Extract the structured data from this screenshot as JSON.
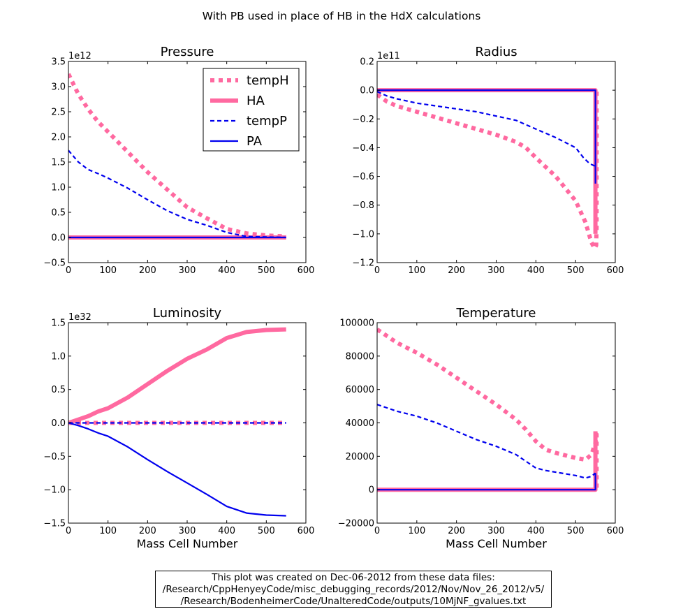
{
  "figure": {
    "suptitle": "With PB used in place of HB in the HdX calculations",
    "caption_lines": [
      "This plot was created on Dec-06-2012 from these data files:",
      "/Research/CppHenyeyCode/misc_debugging_records/2012/Nov/Nov_26_2012/v5/",
      "/Research/BodenheimerCode/UnalteredCode/outputs/10MjNF_gvalues.txt"
    ]
  },
  "colors": {
    "hot_pink": "#ff69a0",
    "blue": "#0000ee",
    "axis": "#000000"
  },
  "chart_data": [
    {
      "type": "line",
      "title": "Pressure",
      "xlabel": "",
      "ylabel": "",
      "offset_text": "1e12",
      "xlim": [
        0,
        600
      ],
      "ylim": [
        -0.5,
        3.5
      ],
      "xticks": [
        "0",
        "100",
        "200",
        "300",
        "400",
        "500",
        "600"
      ],
      "yticks": [
        "−0.5",
        "0.0",
        "0.5",
        "1.0",
        "1.5",
        "2.0",
        "2.5",
        "3.0",
        "3.5"
      ],
      "ytick_values": [
        -0.5,
        0,
        0.5,
        1,
        1.5,
        2,
        2.5,
        3,
        3.5
      ],
      "legend": {
        "placement": "upper-right",
        "entries": [
          "tempH",
          "HA",
          "tempP",
          "PA"
        ]
      },
      "series": [
        {
          "name": "tempH",
          "style": "dotted-thick",
          "color": "#ff69a0",
          "x": [
            0,
            25,
            50,
            75,
            100,
            150,
            200,
            250,
            300,
            350,
            400,
            450,
            500,
            550
          ],
          "y": [
            3.25,
            2.85,
            2.55,
            2.3,
            2.1,
            1.7,
            1.3,
            0.95,
            0.6,
            0.38,
            0.17,
            0.08,
            0.04,
            0.02
          ]
        },
        {
          "name": "HA",
          "style": "solid-thick",
          "color": "#ff69a0",
          "x": [
            0,
            550
          ],
          "y": [
            0.0,
            0.0
          ]
        },
        {
          "name": "tempP",
          "style": "dashed",
          "color": "#0000ee",
          "x": [
            0,
            25,
            50,
            75,
            100,
            150,
            200,
            250,
            300,
            350,
            400,
            450,
            500,
            550
          ],
          "y": [
            1.73,
            1.5,
            1.35,
            1.27,
            1.18,
            0.98,
            0.75,
            0.53,
            0.36,
            0.24,
            0.1,
            0.02,
            0.01,
            0.0
          ]
        },
        {
          "name": "PA",
          "style": "solid",
          "color": "#0000ee",
          "x": [
            0,
            550
          ],
          "y": [
            0.0,
            0.0
          ]
        }
      ]
    },
    {
      "type": "line",
      "title": "Radius",
      "xlabel": "",
      "ylabel": "",
      "offset_text": "1e11",
      "xlim": [
        0,
        600
      ],
      "ylim": [
        -1.2,
        0.2
      ],
      "xticks": [
        "0",
        "100",
        "200",
        "300",
        "400",
        "500",
        "600"
      ],
      "yticks": [
        "−1.2",
        "−1.0",
        "−0.8",
        "−0.6",
        "−0.4",
        "−0.2",
        "0.0",
        "0.2"
      ],
      "ytick_values": [
        -1.2,
        -1.0,
        -0.8,
        -0.6,
        -0.4,
        -0.2,
        0.0,
        0.2
      ],
      "series": [
        {
          "name": "tempH",
          "style": "dotted-thick",
          "color": "#ff69a0",
          "x": [
            0,
            25,
            50,
            100,
            150,
            200,
            250,
            300,
            350,
            375,
            400,
            450,
            500,
            525,
            540,
            548,
            552,
            553,
            553
          ],
          "y": [
            -0.03,
            -0.08,
            -0.11,
            -0.15,
            -0.19,
            -0.23,
            -0.27,
            -0.31,
            -0.36,
            -0.4,
            -0.47,
            -0.6,
            -0.77,
            -0.92,
            -1.06,
            -1.1,
            -1.08,
            -0.95,
            0.0
          ]
        },
        {
          "name": "HA",
          "style": "solid-thick",
          "color": "#ff69a0",
          "x": [
            0,
            550,
            550
          ],
          "y": [
            0.0,
            0.0,
            -1.0
          ]
        },
        {
          "name": "tempP",
          "style": "dashed",
          "color": "#0000ee",
          "x": [
            0,
            25,
            50,
            100,
            150,
            200,
            250,
            300,
            350,
            375,
            400,
            450,
            500,
            520,
            535,
            550
          ],
          "y": [
            -0.01,
            -0.04,
            -0.06,
            -0.09,
            -0.11,
            -0.13,
            -0.15,
            -0.18,
            -0.21,
            -0.24,
            -0.27,
            -0.33,
            -0.4,
            -0.47,
            -0.51,
            -0.53
          ]
        },
        {
          "name": "PA",
          "style": "solid",
          "color": "#0000ee",
          "x": [
            0,
            550,
            550
          ],
          "y": [
            0.0,
            0.0,
            -0.65
          ]
        }
      ]
    },
    {
      "type": "line",
      "title": "Luminosity",
      "xlabel": "Mass Cell Number",
      "ylabel": "",
      "offset_text": "1e32",
      "xlim": [
        0,
        600
      ],
      "ylim": [
        -1.5,
        1.5
      ],
      "xticks": [
        "0",
        "100",
        "200",
        "300",
        "400",
        "500",
        "600"
      ],
      "yticks": [
        "−1.5",
        "−1.0",
        "−0.5",
        "0.0",
        "0.5",
        "1.0",
        "1.5"
      ],
      "ytick_values": [
        -1.5,
        -1.0,
        -0.5,
        0.0,
        0.5,
        1.0,
        1.5
      ],
      "series": [
        {
          "name": "tempH",
          "style": "dotted-thick",
          "color": "#ff69a0",
          "x": [
            0,
            550
          ],
          "y": [
            0.0,
            0.0
          ]
        },
        {
          "name": "HA",
          "style": "solid-thick",
          "color": "#ff69a0",
          "x": [
            0,
            25,
            50,
            75,
            100,
            150,
            200,
            250,
            300,
            350,
            400,
            450,
            500,
            550
          ],
          "y": [
            0.0,
            0.05,
            0.1,
            0.17,
            0.22,
            0.38,
            0.58,
            0.78,
            0.96,
            1.1,
            1.27,
            1.36,
            1.39,
            1.4
          ]
        },
        {
          "name": "tempP",
          "style": "dashed",
          "color": "#0000ee",
          "x": [
            0,
            550
          ],
          "y": [
            0.0,
            0.0
          ]
        },
        {
          "name": "PA",
          "style": "solid",
          "color": "#0000ee",
          "x": [
            0,
            25,
            50,
            75,
            100,
            150,
            200,
            250,
            300,
            350,
            400,
            450,
            500,
            550
          ],
          "y": [
            0.0,
            -0.04,
            -0.09,
            -0.15,
            -0.2,
            -0.36,
            -0.55,
            -0.73,
            -0.9,
            -1.07,
            -1.25,
            -1.35,
            -1.38,
            -1.39
          ]
        }
      ]
    },
    {
      "type": "line",
      "title": "Temperature",
      "xlabel": "Mass Cell Number",
      "ylabel": "",
      "offset_text": "",
      "xlim": [
        0,
        600
      ],
      "ylim": [
        -20000,
        100000
      ],
      "xticks": [
        "0",
        "100",
        "200",
        "300",
        "400",
        "500",
        "600"
      ],
      "yticks": [
        "−20000",
        "0",
        "20000",
        "40000",
        "60000",
        "80000",
        "100000"
      ],
      "ytick_values": [
        -20000,
        0,
        20000,
        40000,
        60000,
        80000,
        100000
      ],
      "series": [
        {
          "name": "tempH",
          "style": "dotted-thick",
          "color": "#ff69a0",
          "x": [
            0,
            25,
            50,
            100,
            150,
            200,
            250,
            300,
            350,
            375,
            400,
            425,
            450,
            500,
            525,
            540,
            550,
            553,
            553
          ],
          "y": [
            96000,
            92000,
            88000,
            82000,
            75000,
            67000,
            59000,
            51000,
            42000,
            36000,
            29000,
            24000,
            22000,
            19000,
            18000,
            21000,
            28000,
            33000,
            0
          ]
        },
        {
          "name": "HA",
          "style": "solid-thick",
          "color": "#ff69a0",
          "x": [
            0,
            550,
            550
          ],
          "y": [
            0,
            0,
            35000
          ]
        },
        {
          "name": "tempP",
          "style": "dashed",
          "color": "#0000ee",
          "x": [
            0,
            25,
            50,
            100,
            150,
            200,
            250,
            300,
            350,
            375,
            400,
            425,
            450,
            500,
            525,
            540,
            550
          ],
          "y": [
            51000,
            49000,
            47000,
            44000,
            40000,
            35000,
            30000,
            26000,
            21000,
            17000,
            13000,
            11500,
            10500,
            8500,
            7000,
            8000,
            10000
          ]
        },
        {
          "name": "PA",
          "style": "solid",
          "color": "#0000ee",
          "x": [
            0,
            550,
            550
          ],
          "y": [
            0,
            0,
            10000
          ]
        }
      ]
    }
  ]
}
